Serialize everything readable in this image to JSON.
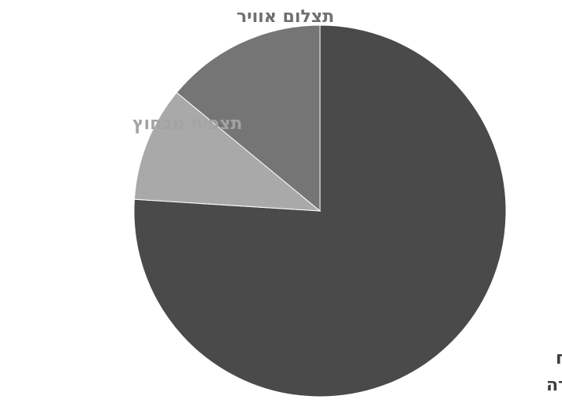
{
  "chart_data": {
    "type": "pie",
    "title": "",
    "slices": [
      {
        "label": "סיור בשטח היחידה",
        "value": 76,
        "color": "#4a4a4a",
        "label_color": "#3c3c3c"
      },
      {
        "label": "תצפית מבחוץ",
        "value": 10,
        "color": "#a9a9a9",
        "label_color": "#a3a3a3"
      },
      {
        "label": "תצלום אוויר",
        "value": 14,
        "color": "#757575",
        "label_color": "#6f6f6f"
      }
    ],
    "legend": "none",
    "data_labels": "category-names-outside",
    "start": "12 o'clock, clockwise"
  }
}
